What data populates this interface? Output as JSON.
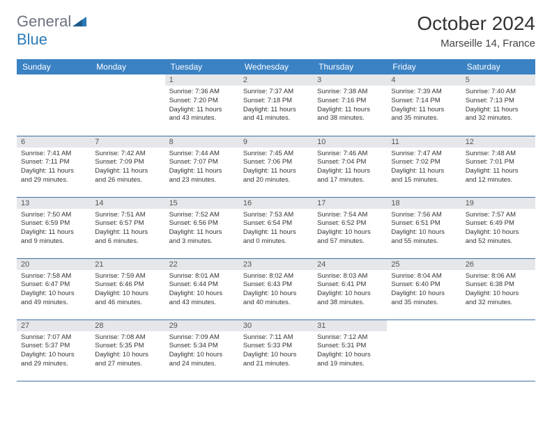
{
  "logo": {
    "text1": "General",
    "text2": "Blue"
  },
  "title": "October 2024",
  "location": "Marseille 14, France",
  "header_bg": "#3b82c4",
  "divider_color": "#3b6ea0",
  "daynum_bg": "#e5e7eb",
  "weekdays": [
    "Sunday",
    "Monday",
    "Tuesday",
    "Wednesday",
    "Thursday",
    "Friday",
    "Saturday"
  ],
  "weeks": [
    [
      null,
      null,
      {
        "n": "1",
        "sr": "Sunrise: 7:36 AM",
        "ss": "Sunset: 7:20 PM",
        "dl": "Daylight: 11 hours and 43 minutes."
      },
      {
        "n": "2",
        "sr": "Sunrise: 7:37 AM",
        "ss": "Sunset: 7:18 PM",
        "dl": "Daylight: 11 hours and 41 minutes."
      },
      {
        "n": "3",
        "sr": "Sunrise: 7:38 AM",
        "ss": "Sunset: 7:16 PM",
        "dl": "Daylight: 11 hours and 38 minutes."
      },
      {
        "n": "4",
        "sr": "Sunrise: 7:39 AM",
        "ss": "Sunset: 7:14 PM",
        "dl": "Daylight: 11 hours and 35 minutes."
      },
      {
        "n": "5",
        "sr": "Sunrise: 7:40 AM",
        "ss": "Sunset: 7:13 PM",
        "dl": "Daylight: 11 hours and 32 minutes."
      }
    ],
    [
      {
        "n": "6",
        "sr": "Sunrise: 7:41 AM",
        "ss": "Sunset: 7:11 PM",
        "dl": "Daylight: 11 hours and 29 minutes."
      },
      {
        "n": "7",
        "sr": "Sunrise: 7:42 AM",
        "ss": "Sunset: 7:09 PM",
        "dl": "Daylight: 11 hours and 26 minutes."
      },
      {
        "n": "8",
        "sr": "Sunrise: 7:44 AM",
        "ss": "Sunset: 7:07 PM",
        "dl": "Daylight: 11 hours and 23 minutes."
      },
      {
        "n": "9",
        "sr": "Sunrise: 7:45 AM",
        "ss": "Sunset: 7:06 PM",
        "dl": "Daylight: 11 hours and 20 minutes."
      },
      {
        "n": "10",
        "sr": "Sunrise: 7:46 AM",
        "ss": "Sunset: 7:04 PM",
        "dl": "Daylight: 11 hours and 17 minutes."
      },
      {
        "n": "11",
        "sr": "Sunrise: 7:47 AM",
        "ss": "Sunset: 7:02 PM",
        "dl": "Daylight: 11 hours and 15 minutes."
      },
      {
        "n": "12",
        "sr": "Sunrise: 7:48 AM",
        "ss": "Sunset: 7:01 PM",
        "dl": "Daylight: 11 hours and 12 minutes."
      }
    ],
    [
      {
        "n": "13",
        "sr": "Sunrise: 7:50 AM",
        "ss": "Sunset: 6:59 PM",
        "dl": "Daylight: 11 hours and 9 minutes."
      },
      {
        "n": "14",
        "sr": "Sunrise: 7:51 AM",
        "ss": "Sunset: 6:57 PM",
        "dl": "Daylight: 11 hours and 6 minutes."
      },
      {
        "n": "15",
        "sr": "Sunrise: 7:52 AM",
        "ss": "Sunset: 6:56 PM",
        "dl": "Daylight: 11 hours and 3 minutes."
      },
      {
        "n": "16",
        "sr": "Sunrise: 7:53 AM",
        "ss": "Sunset: 6:54 PM",
        "dl": "Daylight: 11 hours and 0 minutes."
      },
      {
        "n": "17",
        "sr": "Sunrise: 7:54 AM",
        "ss": "Sunset: 6:52 PM",
        "dl": "Daylight: 10 hours and 57 minutes."
      },
      {
        "n": "18",
        "sr": "Sunrise: 7:56 AM",
        "ss": "Sunset: 6:51 PM",
        "dl": "Daylight: 10 hours and 55 minutes."
      },
      {
        "n": "19",
        "sr": "Sunrise: 7:57 AM",
        "ss": "Sunset: 6:49 PM",
        "dl": "Daylight: 10 hours and 52 minutes."
      }
    ],
    [
      {
        "n": "20",
        "sr": "Sunrise: 7:58 AM",
        "ss": "Sunset: 6:47 PM",
        "dl": "Daylight: 10 hours and 49 minutes."
      },
      {
        "n": "21",
        "sr": "Sunrise: 7:59 AM",
        "ss": "Sunset: 6:46 PM",
        "dl": "Daylight: 10 hours and 46 minutes."
      },
      {
        "n": "22",
        "sr": "Sunrise: 8:01 AM",
        "ss": "Sunset: 6:44 PM",
        "dl": "Daylight: 10 hours and 43 minutes."
      },
      {
        "n": "23",
        "sr": "Sunrise: 8:02 AM",
        "ss": "Sunset: 6:43 PM",
        "dl": "Daylight: 10 hours and 40 minutes."
      },
      {
        "n": "24",
        "sr": "Sunrise: 8:03 AM",
        "ss": "Sunset: 6:41 PM",
        "dl": "Daylight: 10 hours and 38 minutes."
      },
      {
        "n": "25",
        "sr": "Sunrise: 8:04 AM",
        "ss": "Sunset: 6:40 PM",
        "dl": "Daylight: 10 hours and 35 minutes."
      },
      {
        "n": "26",
        "sr": "Sunrise: 8:06 AM",
        "ss": "Sunset: 6:38 PM",
        "dl": "Daylight: 10 hours and 32 minutes."
      }
    ],
    [
      {
        "n": "27",
        "sr": "Sunrise: 7:07 AM",
        "ss": "Sunset: 5:37 PM",
        "dl": "Daylight: 10 hours and 29 minutes."
      },
      {
        "n": "28",
        "sr": "Sunrise: 7:08 AM",
        "ss": "Sunset: 5:35 PM",
        "dl": "Daylight: 10 hours and 27 minutes."
      },
      {
        "n": "29",
        "sr": "Sunrise: 7:09 AM",
        "ss": "Sunset: 5:34 PM",
        "dl": "Daylight: 10 hours and 24 minutes."
      },
      {
        "n": "30",
        "sr": "Sunrise: 7:11 AM",
        "ss": "Sunset: 5:33 PM",
        "dl": "Daylight: 10 hours and 21 minutes."
      },
      {
        "n": "31",
        "sr": "Sunrise: 7:12 AM",
        "ss": "Sunset: 5:31 PM",
        "dl": "Daylight: 10 hours and 19 minutes."
      },
      null,
      null
    ]
  ]
}
